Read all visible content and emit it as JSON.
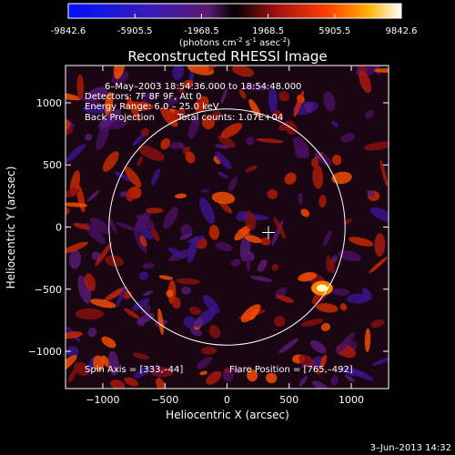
{
  "chart_data": {
    "type": "heatmap",
    "title": "Reconstructed RHESSI Image",
    "xlabel": "Heliocentric X (arcsec)",
    "ylabel": "Heliocentric Y (arcsec)",
    "xlim": [
      -1300,
      1300
    ],
    "ylim": [
      -1300,
      1300
    ],
    "xticks": [
      -1000,
      -500,
      0,
      500,
      1000
    ],
    "yticks": [
      -1000,
      -500,
      0,
      500,
      1000
    ],
    "colorbar": {
      "ticks": [
        "-9842.6",
        "-5905.5",
        "-1968.5",
        "1968.5",
        "5905.5",
        "9842.6"
      ],
      "range": [
        -9842.6,
        9842.6
      ],
      "units_prefix": "(photons cm",
      "units_exp1": "-2",
      "units_mid": " s",
      "units_exp2": "-1",
      "units_mid2": " asec",
      "units_exp3": "-2",
      "units_suffix": ")"
    },
    "annotations": {
      "time": "6–May–2003 18:54:36.000 to 18:54:48.000",
      "detectors": "Detectors: 7F 8F 9F, Att 0",
      "energy": "Energy Range: 6.0 – 25.0 keV",
      "method": "Back Projection",
      "counts": "Total counts: 1.07E+04",
      "spin_axis": "Spin Axis = [333,–44]",
      "flare_position": "Flare Position = [765,–492]"
    },
    "solar_disk": {
      "center": [
        0,
        0
      ],
      "radius": 950
    },
    "spin_axis_marker": [
      333,
      -44
    ],
    "flare_peak": [
      765,
      -492
    ],
    "footer_date": "3–Jun–2013 14:32"
  }
}
